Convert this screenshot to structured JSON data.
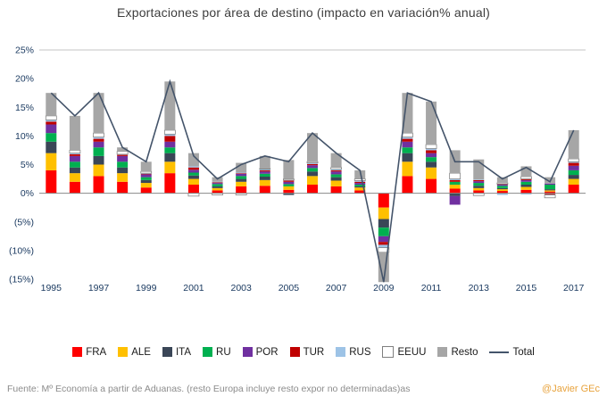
{
  "title": "Exportaciones por área de destino (impacto en variación% anual)",
  "footer": {
    "source": "Fuente: Mº Economía a partir de Aduanas. (resto Europa incluye resto expor no determinadas)as",
    "watermark": "@Javier GEc",
    "watermark_color": "#E8A33D"
  },
  "chart_data": {
    "type": "bar",
    "stacked": true,
    "title": "Exportaciones por área de destino (impacto en variación% anual)",
    "xlabel": "",
    "ylabel": "",
    "ylim": [
      -15,
      25
    ],
    "grid": "top-and-zero-line-only",
    "legend_position": "bottom",
    "x": [
      1995,
      1996,
      1997,
      1998,
      1999,
      2000,
      2001,
      2002,
      2003,
      2004,
      2005,
      2006,
      2007,
      2008,
      2009,
      2010,
      2011,
      2012,
      2013,
      2014,
      2015,
      2016,
      2017
    ],
    "x_tick_labels": [
      "1995",
      "1997",
      "1999",
      "2001",
      "2003",
      "2005",
      "2007",
      "2009",
      "2011",
      "2013",
      "2015",
      "2017"
    ],
    "y_tick_values": [
      25,
      20,
      15,
      10,
      5,
      0,
      -5,
      -10,
      -15
    ],
    "y_tick_labels": [
      "25%",
      "20%",
      "15%",
      "10%",
      "5%",
      "0%",
      "(5%)",
      "(10%)",
      "(15%)"
    ],
    "series": [
      {
        "name": "FRA",
        "color": "#FF0000",
        "values": [
          4.0,
          2.0,
          3.0,
          2.0,
          1.0,
          3.5,
          1.5,
          0.5,
          1.2,
          1.3,
          0.6,
          1.5,
          1.2,
          0.5,
          -2.5,
          3.0,
          2.5,
          0.8,
          0.5,
          0.4,
          0.6,
          0.3,
          1.5
        ]
      },
      {
        "name": "ALE",
        "color": "#FFC000",
        "values": [
          3.0,
          1.5,
          2.0,
          1.5,
          0.8,
          2.0,
          1.0,
          0.4,
          0.8,
          1.0,
          0.6,
          1.5,
          1.0,
          0.5,
          -2.0,
          2.5,
          2.0,
          0.7,
          0.4,
          0.3,
          0.5,
          0.2,
          1.0
        ]
      },
      {
        "name": "ITA",
        "color": "#3A4657",
        "values": [
          2.0,
          1.0,
          1.5,
          1.0,
          0.5,
          1.5,
          0.6,
          0.3,
          0.5,
          0.6,
          -0.3,
          0.8,
          0.6,
          0.2,
          -1.5,
          1.5,
          1.0,
          -0.5,
          0.4,
          0.2,
          0.4,
          0.2,
          0.7
        ]
      },
      {
        "name": "RU",
        "color": "#00B050",
        "values": [
          1.5,
          1.0,
          1.5,
          1.0,
          0.5,
          1.0,
          0.5,
          0.4,
          0.5,
          0.5,
          0.4,
          0.6,
          0.5,
          0.3,
          -1.5,
          1.0,
          0.8,
          0.5,
          0.5,
          0.4,
          0.5,
          0.8,
          0.8
        ]
      },
      {
        "name": "POR",
        "color": "#7030A0",
        "values": [
          1.5,
          1.0,
          1.0,
          1.0,
          0.5,
          1.0,
          0.5,
          0.2,
          0.4,
          0.4,
          0.4,
          0.5,
          0.5,
          0.3,
          -1.0,
          1.0,
          0.7,
          -1.5,
          0.3,
          0.2,
          0.3,
          0.2,
          0.8
        ]
      },
      {
        "name": "TUR",
        "color": "#C00000",
        "values": [
          0.5,
          0.3,
          0.5,
          0.2,
          0.1,
          1.0,
          0.4,
          0.1,
          0.1,
          0.2,
          0.2,
          0.2,
          0.2,
          0.2,
          -0.5,
          0.5,
          0.5,
          0.3,
          0.2,
          0.1,
          0.2,
          -0.2,
          0.5
        ]
      },
      {
        "name": "RUS",
        "color": "#9DC3E6",
        "values": [
          0.3,
          0.2,
          0.3,
          0.1,
          0.1,
          0.3,
          0.2,
          0.1,
          0.1,
          0.2,
          0.1,
          0.2,
          0.2,
          0.2,
          -0.5,
          0.3,
          0.3,
          0.2,
          0.1,
          -0.3,
          -0.2,
          -0.1,
          0.2
        ]
      },
      {
        "name": "EEUU",
        "color": "#FFFFFF",
        "values": [
          0.7,
          0.5,
          0.7,
          0.5,
          0.3,
          0.7,
          -0.5,
          -0.3,
          -0.3,
          0.1,
          0.2,
          0.2,
          0.3,
          0.3,
          -0.8,
          0.7,
          0.7,
          1.0,
          -0.4,
          0.2,
          0.4,
          -0.5,
          0.5
        ]
      },
      {
        "name": "Resto",
        "color": "#A6A6A6",
        "values": [
          4.0,
          6.0,
          7.0,
          0.7,
          1.7,
          8.5,
          2.3,
          0.8,
          1.7,
          2.2,
          3.3,
          5.0,
          2.5,
          1.5,
          -5.2,
          7.0,
          7.5,
          4.0,
          3.5,
          1.0,
          1.8,
          1.1,
          5.0
        ]
      }
    ],
    "total_line": {
      "name": "Total",
      "color": "#44546A",
      "values": [
        17.5,
        13.5,
        17.5,
        8.0,
        5.5,
        19.5,
        6.5,
        2.5,
        5.0,
        6.5,
        5.5,
        10.5,
        7.0,
        4.0,
        -15.5,
        17.5,
        16.0,
        5.5,
        5.5,
        2.5,
        4.5,
        2.0,
        11.0
      ]
    },
    "axis_label_color": "#17375E",
    "gridline_color": "#C6C6C6",
    "zero_line_color": "#8A8A8A"
  }
}
